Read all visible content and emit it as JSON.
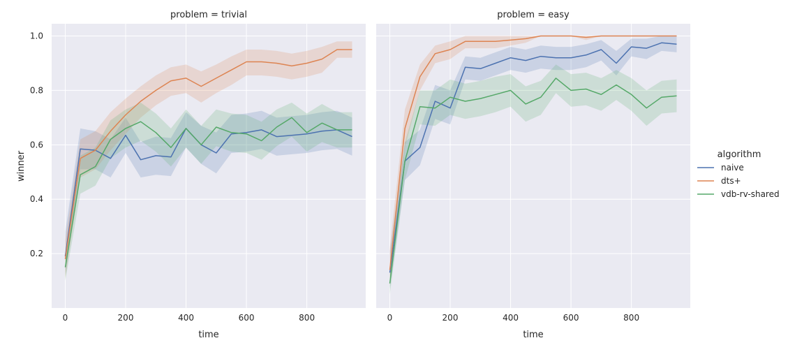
{
  "chart_data": {
    "type": "line",
    "ylabel": "winner",
    "xlabel": "time",
    "x": [
      0,
      50,
      100,
      150,
      200,
      250,
      300,
      350,
      400,
      450,
      500,
      550,
      600,
      650,
      700,
      750,
      800,
      850,
      900,
      950
    ],
    "xticks": [
      0,
      200,
      400,
      600,
      800
    ],
    "yticks": [
      0.2,
      0.4,
      0.6,
      0.8,
      1.0
    ],
    "xlim": [
      -45,
      995
    ],
    "ylim": [
      0.0,
      1.045
    ],
    "grid": true,
    "legend": {
      "title": "algorithm",
      "placement": "right",
      "entries": [
        "naive",
        "dts+",
        "vdb-rv-shared"
      ]
    },
    "colors": {
      "naive": "#4c72b0",
      "dts+": "#dd8452",
      "vdb-rv-shared": "#55a868",
      "panel_bg": "#eaeaf2",
      "grid": "#ffffff"
    },
    "panels": [
      {
        "title": "problem = trivial",
        "series": [
          {
            "name": "naive",
            "values": [
              0.19,
              0.585,
              0.58,
              0.55,
              0.635,
              0.545,
              0.56,
              0.555,
              0.66,
              0.6,
              0.57,
              0.64,
              0.645,
              0.655,
              0.63,
              0.635,
              0.64,
              0.65,
              0.655,
              0.63
            ],
            "lower": [
              0.12,
              0.51,
              0.51,
              0.48,
              0.57,
              0.48,
              0.49,
              0.485,
              0.59,
              0.53,
              0.495,
              0.57,
              0.575,
              0.585,
              0.56,
              0.565,
              0.57,
              0.58,
              0.585,
              0.56
            ],
            "upper": [
              0.28,
              0.66,
              0.65,
              0.62,
              0.7,
              0.61,
              0.63,
              0.625,
              0.72,
              0.67,
              0.645,
              0.71,
              0.715,
              0.725,
              0.7,
              0.705,
              0.71,
              0.72,
              0.725,
              0.7
            ]
          },
          {
            "name": "dts+",
            "values": [
              0.18,
              0.55,
              0.58,
              0.65,
              0.71,
              0.76,
              0.8,
              0.835,
              0.845,
              0.815,
              0.845,
              0.875,
              0.905,
              0.905,
              0.9,
              0.89,
              0.9,
              0.915,
              0.95,
              0.95
            ],
            "lower": [
              0.11,
              0.48,
              0.51,
              0.58,
              0.64,
              0.7,
              0.745,
              0.78,
              0.79,
              0.755,
              0.79,
              0.82,
              0.855,
              0.855,
              0.85,
              0.84,
              0.85,
              0.865,
              0.92,
              0.92
            ],
            "upper": [
              0.25,
              0.62,
              0.65,
              0.72,
              0.77,
              0.815,
              0.855,
              0.885,
              0.895,
              0.87,
              0.895,
              0.925,
              0.95,
              0.95,
              0.945,
              0.935,
              0.945,
              0.96,
              0.98,
              0.98
            ]
          },
          {
            "name": "vdb-rv-shared",
            "values": [
              0.15,
              0.49,
              0.52,
              0.62,
              0.66,
              0.685,
              0.645,
              0.59,
              0.66,
              0.6,
              0.665,
              0.645,
              0.64,
              0.615,
              0.665,
              0.7,
              0.645,
              0.68,
              0.655,
              0.655
            ],
            "lower": [
              0.1,
              0.42,
              0.45,
              0.55,
              0.59,
              0.615,
              0.575,
              0.52,
              0.59,
              0.53,
              0.595,
              0.575,
              0.57,
              0.545,
              0.595,
              0.63,
              0.575,
              0.61,
              0.59,
              0.59
            ],
            "upper": [
              0.2,
              0.56,
              0.59,
              0.69,
              0.73,
              0.755,
              0.715,
              0.66,
              0.73,
              0.67,
              0.73,
              0.715,
              0.71,
              0.685,
              0.73,
              0.755,
              0.715,
              0.75,
              0.72,
              0.72
            ]
          }
        ]
      },
      {
        "title": "problem = easy",
        "series": [
          {
            "name": "naive",
            "values": [
              0.13,
              0.54,
              0.59,
              0.76,
              0.735,
              0.885,
              0.88,
              0.9,
              0.92,
              0.91,
              0.925,
              0.92,
              0.92,
              0.93,
              0.95,
              0.9,
              0.96,
              0.955,
              0.975,
              0.97
            ],
            "lower": [
              0.07,
              0.47,
              0.525,
              0.695,
              0.675,
              0.84,
              0.835,
              0.855,
              0.875,
              0.865,
              0.88,
              0.875,
              0.875,
              0.885,
              0.91,
              0.855,
              0.925,
              0.915,
              0.945,
              0.94
            ],
            "upper": [
              0.21,
              0.61,
              0.655,
              0.82,
              0.8,
              0.925,
              0.92,
              0.94,
              0.96,
              0.95,
              0.965,
              0.96,
              0.96,
              0.97,
              0.985,
              0.945,
              0.99,
              0.99,
              1.0,
              1.0
            ]
          },
          {
            "name": "dts+",
            "values": [
              0.14,
              0.66,
              0.85,
              0.935,
              0.95,
              0.98,
              0.98,
              0.98,
              0.985,
              0.99,
              1.0,
              1.0,
              1.0,
              0.995,
              1.0,
              1.0,
              1.0,
              1.0,
              1.0,
              1.0
            ],
            "lower": [
              0.08,
              0.59,
              0.8,
              0.9,
              0.915,
              0.955,
              0.955,
              0.955,
              0.965,
              0.975,
              1.0,
              1.0,
              1.0,
              0.985,
              1.0,
              1.0,
              1.0,
              1.0,
              1.0,
              1.0
            ],
            "upper": [
              0.22,
              0.73,
              0.895,
              0.965,
              0.98,
              1.0,
              1.0,
              1.0,
              1.0,
              1.0,
              1.0,
              1.0,
              1.0,
              1.0,
              1.0,
              1.0,
              1.0,
              1.0,
              1.0,
              1.0
            ]
          },
          {
            "name": "vdb-rv-shared",
            "values": [
              0.09,
              0.54,
              0.74,
              0.735,
              0.775,
              0.76,
              0.77,
              0.785,
              0.8,
              0.75,
              0.775,
              0.845,
              0.8,
              0.805,
              0.785,
              0.82,
              0.785,
              0.735,
              0.775,
              0.78
            ],
            "lower": [
              0.05,
              0.47,
              0.675,
              0.67,
              0.71,
              0.695,
              0.705,
              0.72,
              0.74,
              0.685,
              0.71,
              0.79,
              0.74,
              0.745,
              0.725,
              0.765,
              0.725,
              0.67,
              0.715,
              0.72
            ],
            "upper": [
              0.14,
              0.61,
              0.8,
              0.8,
              0.84,
              0.825,
              0.835,
              0.85,
              0.86,
              0.815,
              0.835,
              0.895,
              0.86,
              0.865,
              0.845,
              0.875,
              0.845,
              0.8,
              0.835,
              0.84
            ]
          }
        ]
      }
    ]
  }
}
